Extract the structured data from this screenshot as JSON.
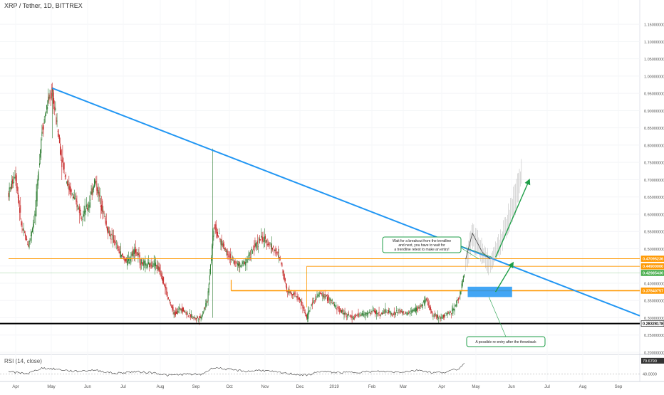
{
  "header": {
    "title": "XRP / Tether, 1D, BITTREX"
  },
  "rsi": {
    "label": "RSI (14, close)",
    "current": "79.6790",
    "level": "40.0000",
    "value": 79.679
  },
  "colors": {
    "trendline": "#2196f3",
    "resistance": "#ff9800",
    "support": "#000000",
    "arrow": "#1e9e47",
    "zone": "#2196f3",
    "up_candle": "#2e7d32",
    "down_candle": "#c62828",
    "current_price": "#4caf50",
    "projection": "#9e9e9e"
  },
  "chart_data": {
    "type": "candlestick",
    "title": "XRP / Tether, 1D, BITTREX",
    "xlabel": "",
    "ylabel": "",
    "x_ticks": [
      "Apr",
      "May",
      "Jun",
      "Jul",
      "Aug",
      "Sep",
      "Oct",
      "Nov",
      "Dec",
      "2019",
      "Feb",
      "Mar",
      "Apr",
      "May",
      "Jun",
      "Jul",
      "Aug",
      "Sep"
    ],
    "y_ticks": [
      "1.15000000",
      "1.10000000",
      "1.05000000",
      "1.00000000",
      "0.95000000",
      "0.90000000",
      "0.85000000",
      "0.80000000",
      "0.75000000",
      "0.70000000",
      "0.65000000",
      "0.60000000",
      "0.55000000",
      "0.50000000",
      "0.45000000",
      "0.40000000",
      "0.35000000",
      "0.30000000",
      "0.25000000",
      "0.20000000"
    ],
    "ylim": [
      0.2,
      1.175
    ],
    "price_levels": [
      {
        "label": "0.47095236",
        "value": 0.47095,
        "style": "orange"
      },
      {
        "label": "0.44900000",
        "value": 0.449,
        "style": "orange"
      },
      {
        "label": "0.42985430",
        "value": 0.42985,
        "style": "green"
      },
      {
        "label": "0.37840757",
        "value": 0.3784,
        "style": "orange"
      },
      {
        "label": "0.28328178",
        "value": 0.28328,
        "style": "black"
      }
    ],
    "annotations": [
      "Wait for a breakout from the trendline",
      "and next, you have to wait for",
      "a trendline retest to make an entry!",
      "A possible re-entry after the throwback"
    ],
    "price_path": [
      [
        0,
        0.66
      ],
      [
        1,
        0.72
      ],
      [
        2,
        0.56
      ],
      [
        3,
        0.51
      ],
      [
        4,
        0.6
      ],
      [
        5,
        0.84
      ],
      [
        6,
        0.93
      ],
      [
        6.6,
        0.95
      ],
      [
        7.3,
        0.86
      ],
      [
        8,
        0.76
      ],
      [
        9,
        0.68
      ],
      [
        10,
        0.64
      ],
      [
        11,
        0.6
      ],
      [
        12,
        0.62
      ],
      [
        13,
        0.7
      ],
      [
        14,
        0.63
      ],
      [
        15,
        0.55
      ],
      [
        16,
        0.52
      ],
      [
        17,
        0.48
      ],
      [
        18,
        0.46
      ],
      [
        19,
        0.5
      ],
      [
        20,
        0.46
      ],
      [
        21,
        0.45
      ],
      [
        22,
        0.46
      ],
      [
        23,
        0.43
      ],
      [
        24,
        0.36
      ],
      [
        25,
        0.31
      ],
      [
        26,
        0.33
      ],
      [
        27,
        0.31
      ],
      [
        28,
        0.3
      ],
      [
        29,
        0.3
      ],
      [
        30,
        0.35
      ],
      [
        31,
        0.57
      ],
      [
        32,
        0.52
      ],
      [
        33,
        0.49
      ],
      [
        34,
        0.46
      ],
      [
        35,
        0.45
      ],
      [
        36,
        0.47
      ],
      [
        37,
        0.5
      ],
      [
        38,
        0.53
      ],
      [
        39,
        0.52
      ],
      [
        40,
        0.5
      ],
      [
        41,
        0.47
      ],
      [
        42,
        0.38
      ],
      [
        43,
        0.37
      ],
      [
        44,
        0.35
      ],
      [
        45,
        0.3
      ],
      [
        46,
        0.35
      ],
      [
        47,
        0.37
      ],
      [
        48,
        0.36
      ],
      [
        49,
        0.34
      ],
      [
        50,
        0.32
      ],
      [
        51,
        0.31
      ],
      [
        52,
        0.3
      ],
      [
        53,
        0.31
      ],
      [
        54,
        0.31
      ],
      [
        55,
        0.32
      ],
      [
        56,
        0.31
      ],
      [
        57,
        0.32
      ],
      [
        58,
        0.31
      ],
      [
        59,
        0.32
      ],
      [
        60,
        0.31
      ],
      [
        61,
        0.32
      ],
      [
        62,
        0.33
      ],
      [
        63,
        0.35
      ],
      [
        64,
        0.31
      ],
      [
        65,
        0.3
      ],
      [
        66,
        0.31
      ],
      [
        67,
        0.32
      ],
      [
        68,
        0.36
      ],
      [
        68.8,
        0.43
      ]
    ],
    "trendline": [
      [
        6.6,
        0.965
      ],
      [
        90,
        0.345
      ]
    ],
    "resistance_segments": [
      {
        "value": 0.47095,
        "from": 0,
        "to": 90
      },
      {
        "value": 0.449,
        "from": 45,
        "to": 90
      },
      {
        "value": 0.3784,
        "from": 33.6,
        "to": 90
      }
    ],
    "support": {
      "value": 0.28328,
      "from": 0,
      "to": 90
    },
    "current_price": 0.42985,
    "reentry_zone": {
      "x_from": 69.3,
      "x_to": 76,
      "y_low": 0.36,
      "y_high": 0.39
    },
    "projection": [
      [
        69,
        0.47
      ],
      [
        70,
        0.55
      ],
      [
        71.5,
        0.5
      ],
      [
        72.5,
        0.47
      ],
      [
        74,
        0.52
      ],
      [
        75.5,
        0.6
      ],
      [
        77,
        0.7
      ],
      [
        77.5,
        0.745
      ]
    ],
    "projection_arrows": [
      [
        [
          73.5,
          0.375
        ],
        [
          76,
          0.455
        ]
      ],
      [
        [
          73.5,
          0.475
        ],
        [
          78.5,
          0.695
        ]
      ]
    ],
    "x_range": [
      0,
      90
    ],
    "rsi_path": [
      [
        0,
        46
      ],
      [
        3,
        42
      ],
      [
        5,
        58
      ],
      [
        7,
        55
      ],
      [
        10,
        48
      ],
      [
        13,
        52
      ],
      [
        16,
        42
      ],
      [
        19,
        47
      ],
      [
        22,
        44
      ],
      [
        24,
        36
      ],
      [
        27,
        40
      ],
      [
        29,
        38
      ],
      [
        31,
        60
      ],
      [
        33,
        54
      ],
      [
        36,
        48
      ],
      [
        38,
        52
      ],
      [
        41,
        44
      ],
      [
        43,
        40
      ],
      [
        45,
        36
      ],
      [
        47,
        48
      ],
      [
        50,
        44
      ],
      [
        53,
        46
      ],
      [
        56,
        48
      ],
      [
        59,
        46
      ],
      [
        62,
        52
      ],
      [
        64,
        44
      ],
      [
        66,
        46
      ],
      [
        68,
        56
      ],
      [
        69,
        79.68
      ]
    ]
  }
}
